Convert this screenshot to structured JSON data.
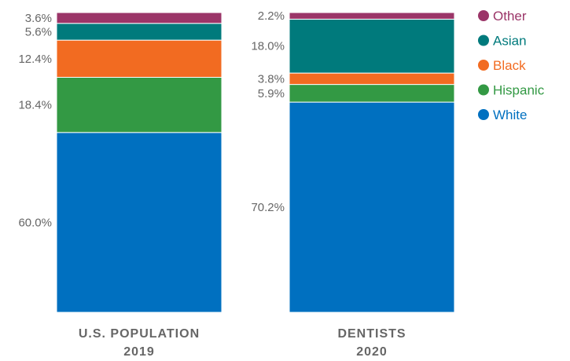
{
  "chart_data": {
    "type": "bar",
    "stacked": true,
    "normalized": true,
    "ylim": [
      0,
      100
    ],
    "grid": false,
    "legend_position": "top-right",
    "categories": [
      {
        "line1": "U.S. POPULATION",
        "line2": "2019"
      },
      {
        "line1": "DENTISTS",
        "line2": "2020"
      }
    ],
    "series": [
      {
        "name": "White",
        "color": "#0070c0",
        "values": [
          60.0,
          70.2
        ],
        "labels": [
          "60.0%",
          "70.2%"
        ]
      },
      {
        "name": "Hispanic",
        "color": "#339944",
        "values": [
          18.4,
          5.9
        ],
        "labels": [
          "18.4%",
          "5.9%"
        ]
      },
      {
        "name": "Black",
        "color": "#f26b21",
        "values": [
          12.4,
          3.8
        ],
        "labels": [
          "12.4%",
          "3.8%"
        ]
      },
      {
        "name": "Asian",
        "color": "#007a7c",
        "values": [
          5.6,
          18.0
        ],
        "labels": [
          "5.6%",
          "18.0%"
        ]
      },
      {
        "name": "Other",
        "color": "#9b3568",
        "values": [
          3.6,
          2.2
        ],
        "labels": [
          "3.6%",
          "2.2%"
        ]
      }
    ],
    "legend_order": [
      "Other",
      "Asian",
      "Black",
      "Hispanic",
      "White"
    ]
  }
}
